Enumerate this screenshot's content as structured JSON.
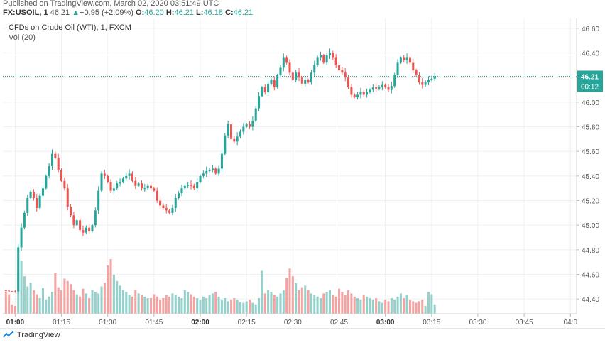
{
  "header": {
    "published": "Published on TradingView.com, March 02, 2020 03:51:49 UTC",
    "symbol": "FX:USOIL, 1",
    "last": "46.21",
    "change_arrow": "▲",
    "change": "+0.95 (+2.09%)",
    "o_label": "O:",
    "o_value": "46.20",
    "h_label": "H:",
    "h_value": "46.21",
    "l_label": "L:",
    "l_value": "46.18",
    "c_label": "C:",
    "c_value": "46.21"
  },
  "legend": {
    "title": "CFDs on Crude Oil (WTI), 1, FXCM",
    "volume": "Vol (20)"
  },
  "price_tag": {
    "price": "46.21",
    "countdown": "00:12"
  },
  "footer": {
    "brand": "TradingView"
  },
  "colors": {
    "up": "#26a69a",
    "down": "#ef5350",
    "up_vol": "#94d1cb",
    "down_vol": "#f4a3a2",
    "grid": "#eef1f3",
    "last_line": "#26a69a"
  },
  "chart_data": {
    "type": "candlestick",
    "interval": "1 minute",
    "y_ticks": [
      "46.60",
      "46.40",
      "46.20",
      "46.00",
      "45.80",
      "45.60",
      "45.40",
      "45.20",
      "45.00",
      "44.80",
      "44.60",
      "44.40"
    ],
    "ylim": [
      44.28,
      46.68
    ],
    "x_ticks": [
      {
        "label": "01:00",
        "minute": 0,
        "bold": true
      },
      {
        "label": "01:15",
        "minute": 15,
        "bold": false
      },
      {
        "label": "01:30",
        "minute": 30,
        "bold": false
      },
      {
        "label": "01:45",
        "minute": 45,
        "bold": false
      },
      {
        "label": "02:00",
        "minute": 60,
        "bold": true
      },
      {
        "label": "02:15",
        "minute": 75,
        "bold": false
      },
      {
        "label": "02:30",
        "minute": 90,
        "bold": false
      },
      {
        "label": "02:45",
        "minute": 105,
        "bold": false
      },
      {
        "label": "03:00",
        "minute": 120,
        "bold": true
      },
      {
        "label": "03:15",
        "minute": 135,
        "bold": false
      },
      {
        "label": "03:30",
        "minute": 150,
        "bold": false
      },
      {
        "label": "03:45",
        "minute": 165,
        "bold": false
      },
      {
        "label": "04:0",
        "minute": 180,
        "bold": false
      }
    ],
    "minute_start": -4,
    "minute_end": 182,
    "last_price": 46.21,
    "close_path": [
      [
        -4,
        44.47
      ],
      [
        0,
        44.46
      ],
      [
        1,
        44.82
      ],
      [
        2,
        44.98
      ],
      [
        3,
        45.1
      ],
      [
        4,
        45.22
      ],
      [
        5,
        45.27
      ],
      [
        6,
        45.22
      ],
      [
        7,
        45.14
      ],
      [
        8,
        45.24
      ],
      [
        9,
        45.3
      ],
      [
        10,
        45.4
      ],
      [
        11,
        45.48
      ],
      [
        12,
        45.58
      ],
      [
        13,
        45.55
      ],
      [
        14,
        45.45
      ],
      [
        15,
        45.36
      ],
      [
        16,
        45.3
      ],
      [
        17,
        45.15
      ],
      [
        18,
        45.08
      ],
      [
        19,
        45.0
      ],
      [
        20,
        45.04
      ],
      [
        21,
        44.96
      ],
      [
        22,
        44.94
      ],
      [
        23,
        44.98
      ],
      [
        24,
        44.95
      ],
      [
        25,
        45.0
      ],
      [
        26,
        45.12
      ],
      [
        27,
        45.28
      ],
      [
        28,
        45.42
      ],
      [
        29,
        45.4
      ],
      [
        30,
        45.35
      ],
      [
        31,
        45.28
      ],
      [
        32,
        45.3
      ],
      [
        33,
        45.34
      ],
      [
        34,
        45.35
      ],
      [
        35,
        45.38
      ],
      [
        36,
        45.4
      ],
      [
        37,
        45.42
      ],
      [
        38,
        45.36
      ],
      [
        39,
        45.32
      ],
      [
        40,
        45.34
      ],
      [
        41,
        45.3
      ],
      [
        42,
        45.3
      ],
      [
        43,
        45.32
      ],
      [
        44,
        45.3
      ],
      [
        45,
        45.28
      ],
      [
        46,
        45.2
      ],
      [
        47,
        45.16
      ],
      [
        48,
        45.14
      ],
      [
        49,
        45.12
      ],
      [
        50,
        45.1
      ],
      [
        51,
        45.14
      ],
      [
        52,
        45.22
      ],
      [
        53,
        45.26
      ],
      [
        54,
        45.3
      ],
      [
        55,
        45.32
      ],
      [
        56,
        45.33
      ],
      [
        57,
        45.32
      ],
      [
        58,
        45.3
      ],
      [
        59,
        45.35
      ],
      [
        60,
        45.4
      ],
      [
        61,
        45.42
      ],
      [
        62,
        45.44
      ],
      [
        63,
        45.45
      ],
      [
        64,
        45.46
      ],
      [
        65,
        45.42
      ],
      [
        66,
        45.46
      ],
      [
        67,
        45.58
      ],
      [
        68,
        45.73
      ],
      [
        69,
        45.82
      ],
      [
        70,
        45.7
      ],
      [
        71,
        45.68
      ],
      [
        72,
        45.72
      ],
      [
        73,
        45.76
      ],
      [
        74,
        45.8
      ],
      [
        75,
        45.82
      ],
      [
        76,
        45.8
      ],
      [
        77,
        45.85
      ],
      [
        78,
        45.95
      ],
      [
        79,
        46.05
      ],
      [
        80,
        46.12
      ],
      [
        81,
        46.08
      ],
      [
        82,
        46.15
      ],
      [
        83,
        46.18
      ],
      [
        84,
        46.12
      ],
      [
        85,
        46.22
      ],
      [
        86,
        46.28
      ],
      [
        87,
        46.36
      ],
      [
        88,
        46.32
      ],
      [
        89,
        46.24
      ],
      [
        90,
        46.18
      ],
      [
        91,
        46.24
      ],
      [
        92,
        46.2
      ],
      [
        93,
        46.15
      ],
      [
        94,
        46.18
      ],
      [
        95,
        46.16
      ],
      [
        96,
        46.24
      ],
      [
        97,
        46.3
      ],
      [
        98,
        46.36
      ],
      [
        99,
        46.38
      ],
      [
        100,
        46.32
      ],
      [
        101,
        46.38
      ],
      [
        102,
        46.4
      ],
      [
        103,
        46.36
      ],
      [
        104,
        46.3
      ],
      [
        105,
        46.26
      ],
      [
        106,
        46.24
      ],
      [
        107,
        46.2
      ],
      [
        108,
        46.12
      ],
      [
        109,
        46.06
      ],
      [
        110,
        46.04
      ],
      [
        111,
        46.06
      ],
      [
        112,
        46.08
      ],
      [
        113,
        46.06
      ],
      [
        114,
        46.08
      ],
      [
        115,
        46.1
      ],
      [
        116,
        46.12
      ],
      [
        117,
        46.11
      ],
      [
        118,
        46.12
      ],
      [
        119,
        46.14
      ],
      [
        120,
        46.12
      ],
      [
        121,
        46.1
      ],
      [
        122,
        46.13
      ],
      [
        123,
        46.22
      ],
      [
        124,
        46.32
      ],
      [
        125,
        46.36
      ],
      [
        126,
        46.34
      ],
      [
        127,
        46.36
      ],
      [
        128,
        46.32
      ],
      [
        129,
        46.26
      ],
      [
        130,
        46.22
      ],
      [
        131,
        46.16
      ],
      [
        132,
        46.14
      ],
      [
        133,
        46.16
      ],
      [
        134,
        46.18
      ],
      [
        135,
        46.19
      ],
      [
        136,
        46.21
      ]
    ],
    "volume_heights": [
      0.28,
      0.25,
      0.12,
      0.1,
      0.55,
      0.68,
      0.48,
      0.35,
      0.4,
      0.3,
      0.25,
      0.2,
      0.33,
      0.18,
      0.22,
      0.28,
      0.52,
      0.34,
      0.3,
      0.45,
      0.42,
      0.38,
      0.3,
      0.25,
      0.22,
      0.32,
      0.26,
      0.2,
      0.3,
      0.28,
      0.26,
      0.35,
      0.4,
      0.62,
      0.7,
      0.5,
      0.42,
      0.36,
      0.3,
      0.28,
      0.24,
      0.22,
      0.3,
      0.26,
      0.24,
      0.22,
      0.2,
      0.2,
      0.25,
      0.22,
      0.18,
      0.2,
      0.24,
      0.22,
      0.26,
      0.24,
      0.22,
      0.2,
      0.3,
      0.28,
      0.25,
      0.22,
      0.2,
      0.18,
      0.22,
      0.2,
      0.24,
      0.26,
      0.28,
      0.22,
      0.18,
      0.2,
      0.16,
      0.18,
      0.2,
      0.18,
      0.15,
      0.14,
      0.16,
      0.18,
      0.14,
      0.12,
      0.2,
      0.55,
      0.26,
      0.3,
      0.28,
      0.24,
      0.22,
      0.26,
      0.3,
      0.46,
      0.58,
      0.48,
      0.4,
      0.3,
      0.34,
      0.36,
      0.3,
      0.26,
      0.24,
      0.22,
      0.2,
      0.26,
      0.28,
      0.3,
      0.24,
      0.22,
      0.32,
      0.28,
      0.24,
      0.3,
      0.26,
      0.22,
      0.2,
      0.18,
      0.24,
      0.22,
      0.2,
      0.18,
      0.2,
      0.16,
      0.14,
      0.18,
      0.16,
      0.2,
      0.18,
      0.22,
      0.26,
      0.2,
      0.24,
      0.18,
      0.16,
      0.14,
      0.16,
      0.18,
      0.1
    ]
  }
}
